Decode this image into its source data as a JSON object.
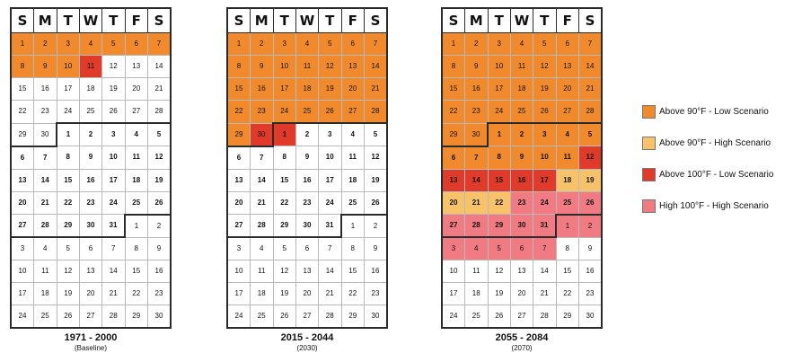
{
  "weekday_headers": [
    "S",
    "M",
    "T",
    "W",
    "T",
    "F",
    "S"
  ],
  "colors": {
    "low90": "#f08a2c",
    "high90": "#f8c26b",
    "low100": "#e03a2a",
    "high100": "#f07b83",
    "plain": "#ffffff"
  },
  "legend": [
    {
      "key": "low90",
      "label": "Above 90°F - Low Scenario"
    },
    {
      "key": "high90",
      "label": "Above 90°F - High Scenario"
    },
    {
      "key": "low100",
      "label": "Above 100°F - Low Scenario"
    },
    {
      "key": "high100",
      "label": "High 100°F - High Scenario"
    }
  ],
  "month_grid": [
    [
      "1",
      "2",
      "3",
      "4",
      "5",
      "6",
      "7"
    ],
    [
      "8",
      "9",
      "10",
      "11",
      "12",
      "13",
      "14"
    ],
    [
      "15",
      "16",
      "17",
      "18",
      "19",
      "20",
      "21"
    ],
    [
      "22",
      "23",
      "24",
      "25",
      "26",
      "27",
      "28"
    ],
    [
      "29",
      "30",
      "1",
      "2",
      "3",
      "4",
      "5"
    ],
    [
      "6",
      "7",
      "8",
      "9",
      "10",
      "11",
      "12"
    ],
    [
      "13",
      "14",
      "15",
      "16",
      "17",
      "18",
      "19"
    ],
    [
      "20",
      "21",
      "22",
      "23",
      "24",
      "25",
      "26"
    ],
    [
      "27",
      "28",
      "29",
      "30",
      "31",
      "1",
      "2"
    ],
    [
      "3",
      "4",
      "5",
      "6",
      "7",
      "8",
      "9"
    ],
    [
      "10",
      "11",
      "12",
      "13",
      "14",
      "15",
      "16"
    ],
    [
      "17",
      "18",
      "19",
      "20",
      "21",
      "22",
      "23"
    ],
    [
      "24",
      "25",
      "26",
      "27",
      "28",
      "29",
      "30"
    ]
  ],
  "calendars": [
    {
      "title": "1971 - 2000",
      "subtitle": "(Baseline)",
      "highlights": {
        "0-0": "low90",
        "0-1": "low90",
        "0-2": "low90",
        "0-3": "low90",
        "0-4": "low90",
        "0-5": "low90",
        "0-6": "low90",
        "1-0": "low90",
        "1-1": "low90",
        "1-2": "low90",
        "1-3": "low100"
      }
    },
    {
      "title": "2015 - 2044",
      "subtitle": "(2030)",
      "highlights": {
        "0-0": "low90",
        "0-1": "low90",
        "0-2": "low90",
        "0-3": "low90",
        "0-4": "low90",
        "0-5": "low90",
        "0-6": "low90",
        "1-0": "low90",
        "1-1": "low90",
        "1-2": "low90",
        "1-3": "low90",
        "1-4": "low90",
        "1-5": "low90",
        "1-6": "low90",
        "2-0": "low90",
        "2-1": "low90",
        "2-2": "low90",
        "2-3": "low90",
        "2-4": "low90",
        "2-5": "low90",
        "2-6": "low90",
        "3-0": "low90",
        "3-1": "low90",
        "3-2": "low90",
        "3-3": "low90",
        "3-4": "low90",
        "3-5": "low90",
        "3-6": "low90",
        "4-0": "low90",
        "4-1": "low100",
        "4-2": "low100"
      }
    },
    {
      "title": "2055 - 2084",
      "subtitle": "(2070)",
      "highlights": {
        "0-0": "low90",
        "0-1": "low90",
        "0-2": "low90",
        "0-3": "low90",
        "0-4": "low90",
        "0-5": "low90",
        "0-6": "low90",
        "1-0": "low90",
        "1-1": "low90",
        "1-2": "low90",
        "1-3": "low90",
        "1-4": "low90",
        "1-5": "low90",
        "1-6": "low90",
        "2-0": "low90",
        "2-1": "low90",
        "2-2": "low90",
        "2-3": "low90",
        "2-4": "low90",
        "2-5": "low90",
        "2-6": "low90",
        "3-0": "low90",
        "3-1": "low90",
        "3-2": "low90",
        "3-3": "low90",
        "3-4": "low90",
        "3-5": "low90",
        "3-6": "low90",
        "4-0": "low90",
        "4-1": "low90",
        "4-2": "low90",
        "4-3": "low90",
        "4-4": "low90",
        "4-5": "low90",
        "4-6": "low90",
        "5-0": "low90",
        "5-1": "low90",
        "5-2": "low90",
        "5-3": "low90",
        "5-4": "low90",
        "5-5": "low90",
        "5-6": "low100",
        "6-0": "low100",
        "6-1": "low100",
        "6-2": "low100",
        "6-3": "low100",
        "6-4": "low100",
        "6-5": "high90",
        "6-6": "high90",
        "7-0": "high90",
        "7-1": "high90",
        "7-2": "high90",
        "7-3": "high100",
        "7-4": "high100",
        "7-5": "high100",
        "7-6": "high100",
        "8-0": "high100",
        "8-1": "high100",
        "8-2": "high100",
        "8-3": "high100",
        "8-4": "high100",
        "8-5": "high100",
        "8-6": "high100",
        "9-0": "high100",
        "9-1": "high100",
        "9-2": "high100",
        "9-3": "high100",
        "9-4": "high100"
      }
    }
  ]
}
